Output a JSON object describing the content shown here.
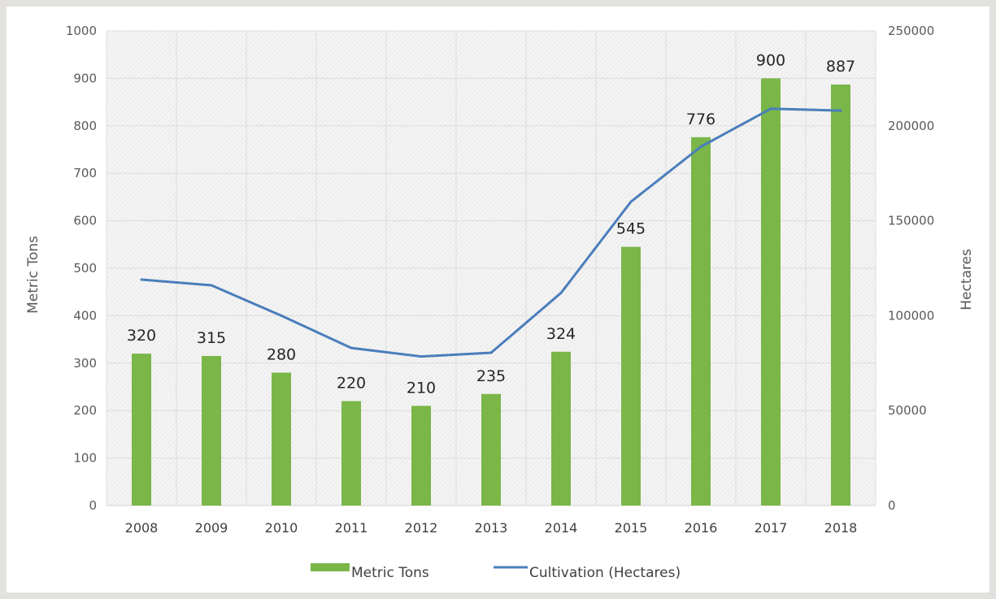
{
  "chart_data": {
    "type": "bar",
    "categories": [
      "2008",
      "2009",
      "2010",
      "2011",
      "2012",
      "2013",
      "2014",
      "2015",
      "2016",
      "2017",
      "2018"
    ],
    "series": [
      {
        "name": "Metric Tons",
        "type": "bar",
        "axis": "left",
        "color": "#7ab648",
        "values": [
          320,
          315,
          280,
          220,
          210,
          235,
          324,
          545,
          776,
          900,
          887
        ],
        "data_labels": [
          "320",
          "315",
          "280",
          "220",
          "210",
          "235",
          "324",
          "545",
          "776",
          "900",
          "887"
        ]
      },
      {
        "name": "Cultivation (Hectares)",
        "type": "line",
        "axis": "right",
        "color": "#4a7ebb",
        "values": [
          119000,
          116000,
          100000,
          83000,
          78500,
          80500,
          112000,
          160000,
          189000,
          209000,
          208000
        ]
      }
    ],
    "ylabel": "Metric Tons",
    "y2label": "Hectares",
    "ylim": [
      0,
      1000
    ],
    "y2lim": [
      0,
      250000
    ],
    "yticks": [
      "0",
      "100",
      "200",
      "300",
      "400",
      "500",
      "600",
      "700",
      "800",
      "900",
      "1000"
    ],
    "y2ticks": [
      "0",
      "50000",
      "100000",
      "150000",
      "200000",
      "250000"
    ],
    "grid": true,
    "legend_position": "bottom"
  }
}
